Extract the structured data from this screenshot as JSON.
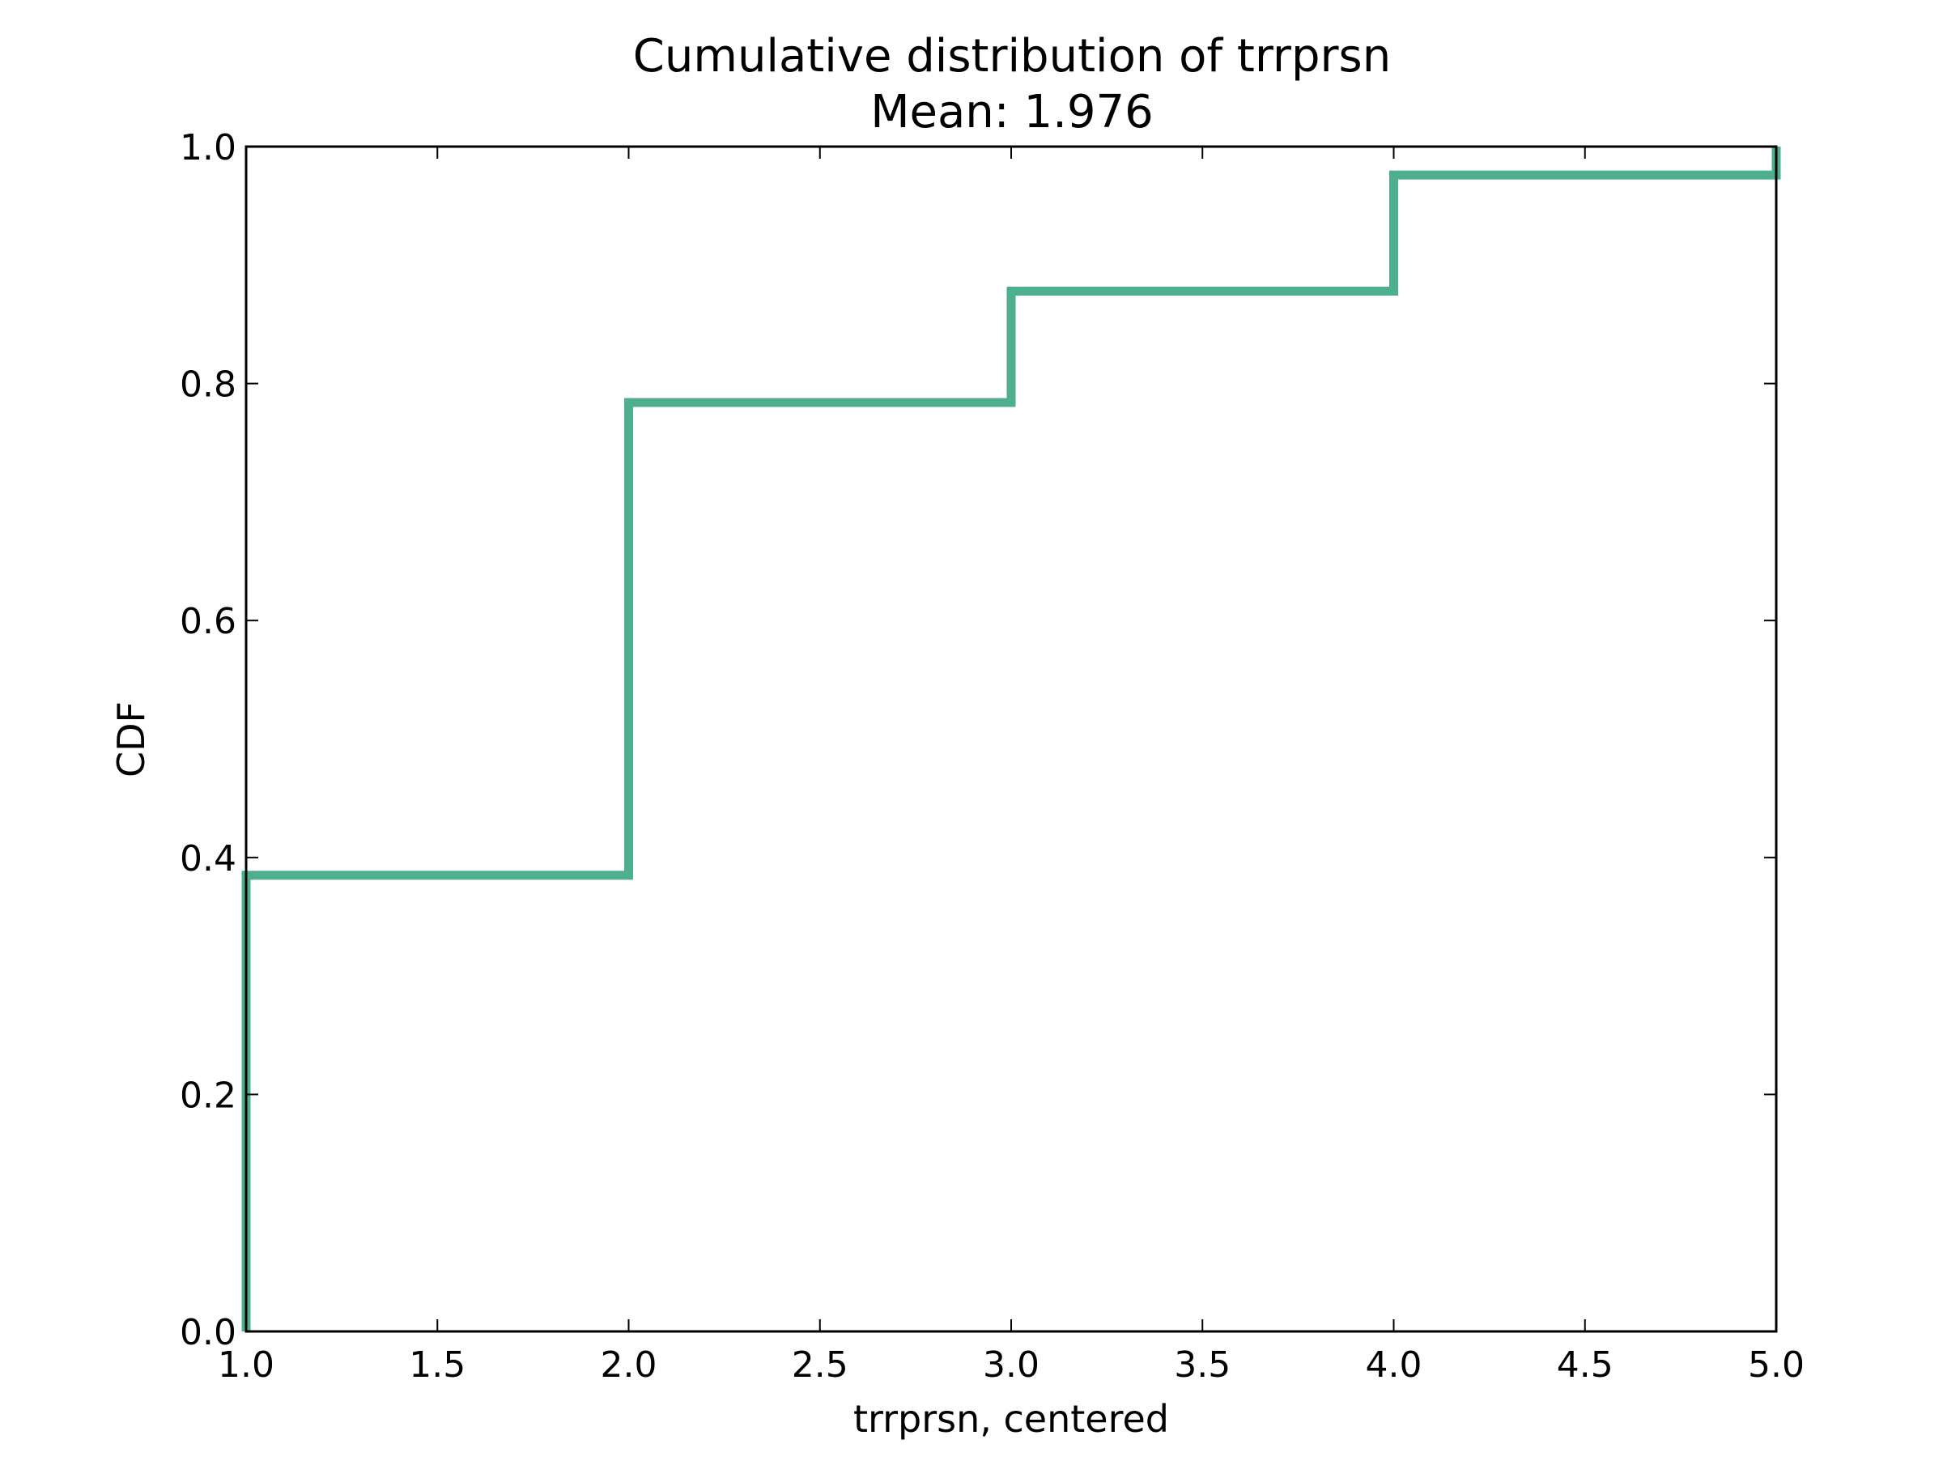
{
  "chart_data": {
    "type": "line",
    "step": "post",
    "title": "Cumulative distribution of trrprsn",
    "subtitle": "Mean: 1.976",
    "xlabel": "trrprsn, centered",
    "ylabel": "CDF",
    "xlim": [
      1.0,
      5.0
    ],
    "ylim": [
      0.0,
      1.0
    ],
    "x_ticks": [
      1.0,
      1.5,
      2.0,
      2.5,
      3.0,
      3.5,
      4.0,
      4.5,
      5.0
    ],
    "x_tick_labels": [
      "1.0",
      "1.5",
      "2.0",
      "2.5",
      "3.0",
      "3.5",
      "4.0",
      "4.5",
      "5.0"
    ],
    "y_ticks": [
      0.0,
      0.2,
      0.4,
      0.6,
      0.8,
      1.0
    ],
    "y_tick_labels": [
      "0.0",
      "0.2",
      "0.4",
      "0.6",
      "0.8",
      "1.0"
    ],
    "grid": false,
    "series": [
      {
        "color": "#4daf8f",
        "x": [
          1.0,
          1.0,
          2.0,
          2.0,
          3.0,
          3.0,
          4.0,
          4.0,
          5.0,
          5.0
        ],
        "y": [
          0.0,
          0.385,
          0.385,
          0.784,
          0.784,
          0.878,
          0.878,
          0.976,
          0.976,
          1.0
        ]
      }
    ]
  }
}
